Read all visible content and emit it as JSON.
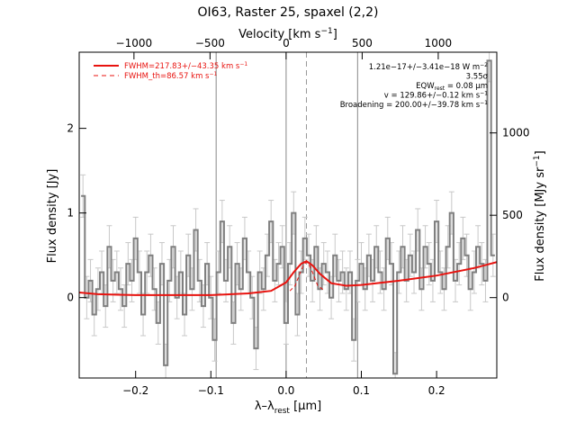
{
  "chart_data": {
    "type": "line",
    "title": "OI63, Raster 25, spaxel (2,2)",
    "xlabel": "λ–λ",
    "xlabel_sub": "rest",
    "xlabel_unit": "[μm]",
    "ylabel_left": "Flux density [Jy]",
    "ylabel_right": "Flux density [MJy sr",
    "ylabel_right_sup": "−1",
    "ylabel_right_end": "]",
    "top_axis_label": "Velocity [km s",
    "top_axis_label_sup": "−1",
    "top_axis_label_end": "]",
    "xlim": [
      -0.275,
      0.28
    ],
    "ylim": [
      -0.95,
      2.9
    ],
    "right_ylim": [
      -488,
      1490
    ],
    "top_xlim": [
      -1360,
      1385
    ],
    "x_ticks": [
      -0.2,
      -0.1,
      0.0,
      0.1,
      0.2
    ],
    "x_tick_labels": [
      "−0.2",
      "−0.1",
      "0.0",
      "0.1",
      "0.2"
    ],
    "y_ticks": [
      0,
      1,
      2
    ],
    "y_tick_labels": [
      "0",
      "1",
      "2"
    ],
    "right_y_ticks": [
      0,
      500,
      1000
    ],
    "right_y_tick_labels": [
      "0",
      "500",
      "1000"
    ],
    "top_x_ticks": [
      -1000,
      -500,
      0,
      500,
      1000
    ],
    "top_x_tick_labels": [
      "−1000",
      "−500",
      "0",
      "500",
      "1000"
    ],
    "vertical_lines": [
      -0.093,
      0.0,
      0.095
    ],
    "line_center": 0.027,
    "legend_position": "top-left",
    "legend": [
      {
        "label": "FWHM=217.83+/−43.35 km s",
        "sup": "−1",
        "style": "solid",
        "color": "#e8130f"
      },
      {
        "label": "FWHM_th=86.57 km s",
        "sup": "−1",
        "style": "dashed",
        "color": "#e8130f"
      }
    ],
    "annotations": [
      {
        "text": "1.21e−17+/−3.41e−18 W m",
        "sup": "−2"
      },
      {
        "text": "3.55σ"
      },
      {
        "text": "EQW",
        "sub": "rest",
        "text2": " = 0.08 μm"
      },
      {
        "text": "v = 129.86+/−0.12 km s",
        "sup": "−1"
      },
      {
        "text": "Broadening = 200.00+/−39.78 km s",
        "sup": "−1"
      }
    ],
    "series": [
      {
        "name": "data",
        "style": "steps",
        "color": "#7f7f7f",
        "x": [
          -0.27,
          -0.265,
          -0.26,
          -0.255,
          -0.25,
          -0.245,
          -0.24,
          -0.235,
          -0.23,
          -0.225,
          -0.22,
          -0.215,
          -0.21,
          -0.205,
          -0.2,
          -0.195,
          -0.19,
          -0.185,
          -0.18,
          -0.175,
          -0.17,
          -0.165,
          -0.16,
          -0.155,
          -0.15,
          -0.145,
          -0.14,
          -0.135,
          -0.13,
          -0.125,
          -0.12,
          -0.115,
          -0.11,
          -0.105,
          -0.1,
          -0.095,
          -0.09,
          -0.085,
          -0.08,
          -0.075,
          -0.07,
          -0.065,
          -0.06,
          -0.055,
          -0.05,
          -0.045,
          -0.04,
          -0.035,
          -0.03,
          -0.025,
          -0.02,
          -0.015,
          -0.01,
          -0.005,
          0.0,
          0.005,
          0.01,
          0.015,
          0.02,
          0.025,
          0.03,
          0.035,
          0.04,
          0.045,
          0.05,
          0.055,
          0.06,
          0.065,
          0.07,
          0.075,
          0.08,
          0.085,
          0.09,
          0.095,
          0.1,
          0.105,
          0.11,
          0.115,
          0.12,
          0.125,
          0.13,
          0.135,
          0.14,
          0.145,
          0.15,
          0.155,
          0.16,
          0.165,
          0.17,
          0.175,
          0.18,
          0.185,
          0.19,
          0.195,
          0.2,
          0.205,
          0.21,
          0.215,
          0.22,
          0.225,
          0.23,
          0.235,
          0.24,
          0.245,
          0.25,
          0.255,
          0.26,
          0.265,
          0.27,
          0.275
        ],
        "y": [
          1.2,
          0.0,
          0.2,
          -0.2,
          0.1,
          0.3,
          -0.1,
          0.6,
          0.2,
          0.3,
          0.1,
          -0.1,
          0.4,
          0.2,
          0.7,
          0.3,
          -0.2,
          0.3,
          0.5,
          0.1,
          -0.3,
          0.4,
          -0.8,
          0.2,
          0.6,
          0.0,
          0.3,
          -0.2,
          0.5,
          0.1,
          0.8,
          0.2,
          -0.1,
          0.4,
          0.0,
          -0.5,
          0.3,
          0.9,
          0.2,
          0.6,
          -0.3,
          0.4,
          0.1,
          0.7,
          0.3,
          0.0,
          -0.6,
          0.3,
          0.1,
          0.5,
          0.9,
          0.2,
          0.4,
          0.6,
          -0.3,
          0.4,
          1.0,
          -0.2,
          0.3,
          0.7,
          0.5,
          0.2,
          0.6,
          0.1,
          0.4,
          0.3,
          0.0,
          0.5,
          0.2,
          0.3,
          0.1,
          0.3,
          -0.5,
          0.2,
          0.4,
          0.1,
          0.5,
          0.2,
          0.6,
          0.3,
          0.1,
          0.7,
          0.4,
          -0.9,
          0.3,
          0.6,
          0.2,
          0.5,
          0.3,
          0.8,
          0.1,
          0.6,
          0.4,
          0.2,
          0.9,
          0.3,
          0.1,
          0.6,
          1.0,
          0.2,
          0.4,
          0.7,
          0.5,
          0.1,
          0.3,
          0.6,
          0.4,
          0.2,
          2.8,
          0.5
        ],
        "err": 0.25
      },
      {
        "name": "fit",
        "style": "solid",
        "color": "#e8130f",
        "x": [
          -0.275,
          -0.25,
          -0.2,
          -0.15,
          -0.1,
          -0.05,
          -0.02,
          0.0,
          0.01,
          0.02,
          0.027,
          0.035,
          0.045,
          0.06,
          0.08,
          0.1,
          0.15,
          0.2,
          0.25,
          0.28
        ],
        "y": [
          0.06,
          0.04,
          0.03,
          0.03,
          0.03,
          0.05,
          0.08,
          0.18,
          0.3,
          0.4,
          0.43,
          0.38,
          0.28,
          0.17,
          0.14,
          0.15,
          0.2,
          0.26,
          0.35,
          0.42
        ]
      },
      {
        "name": "fit_th",
        "style": "dashed",
        "color": "#e8130f",
        "x": [
          0.005,
          0.012,
          0.018,
          0.023,
          0.027,
          0.031,
          0.036,
          0.042,
          0.05
        ],
        "y": [
          0.08,
          0.14,
          0.28,
          0.38,
          0.42,
          0.38,
          0.28,
          0.14,
          0.09
        ]
      }
    ]
  }
}
